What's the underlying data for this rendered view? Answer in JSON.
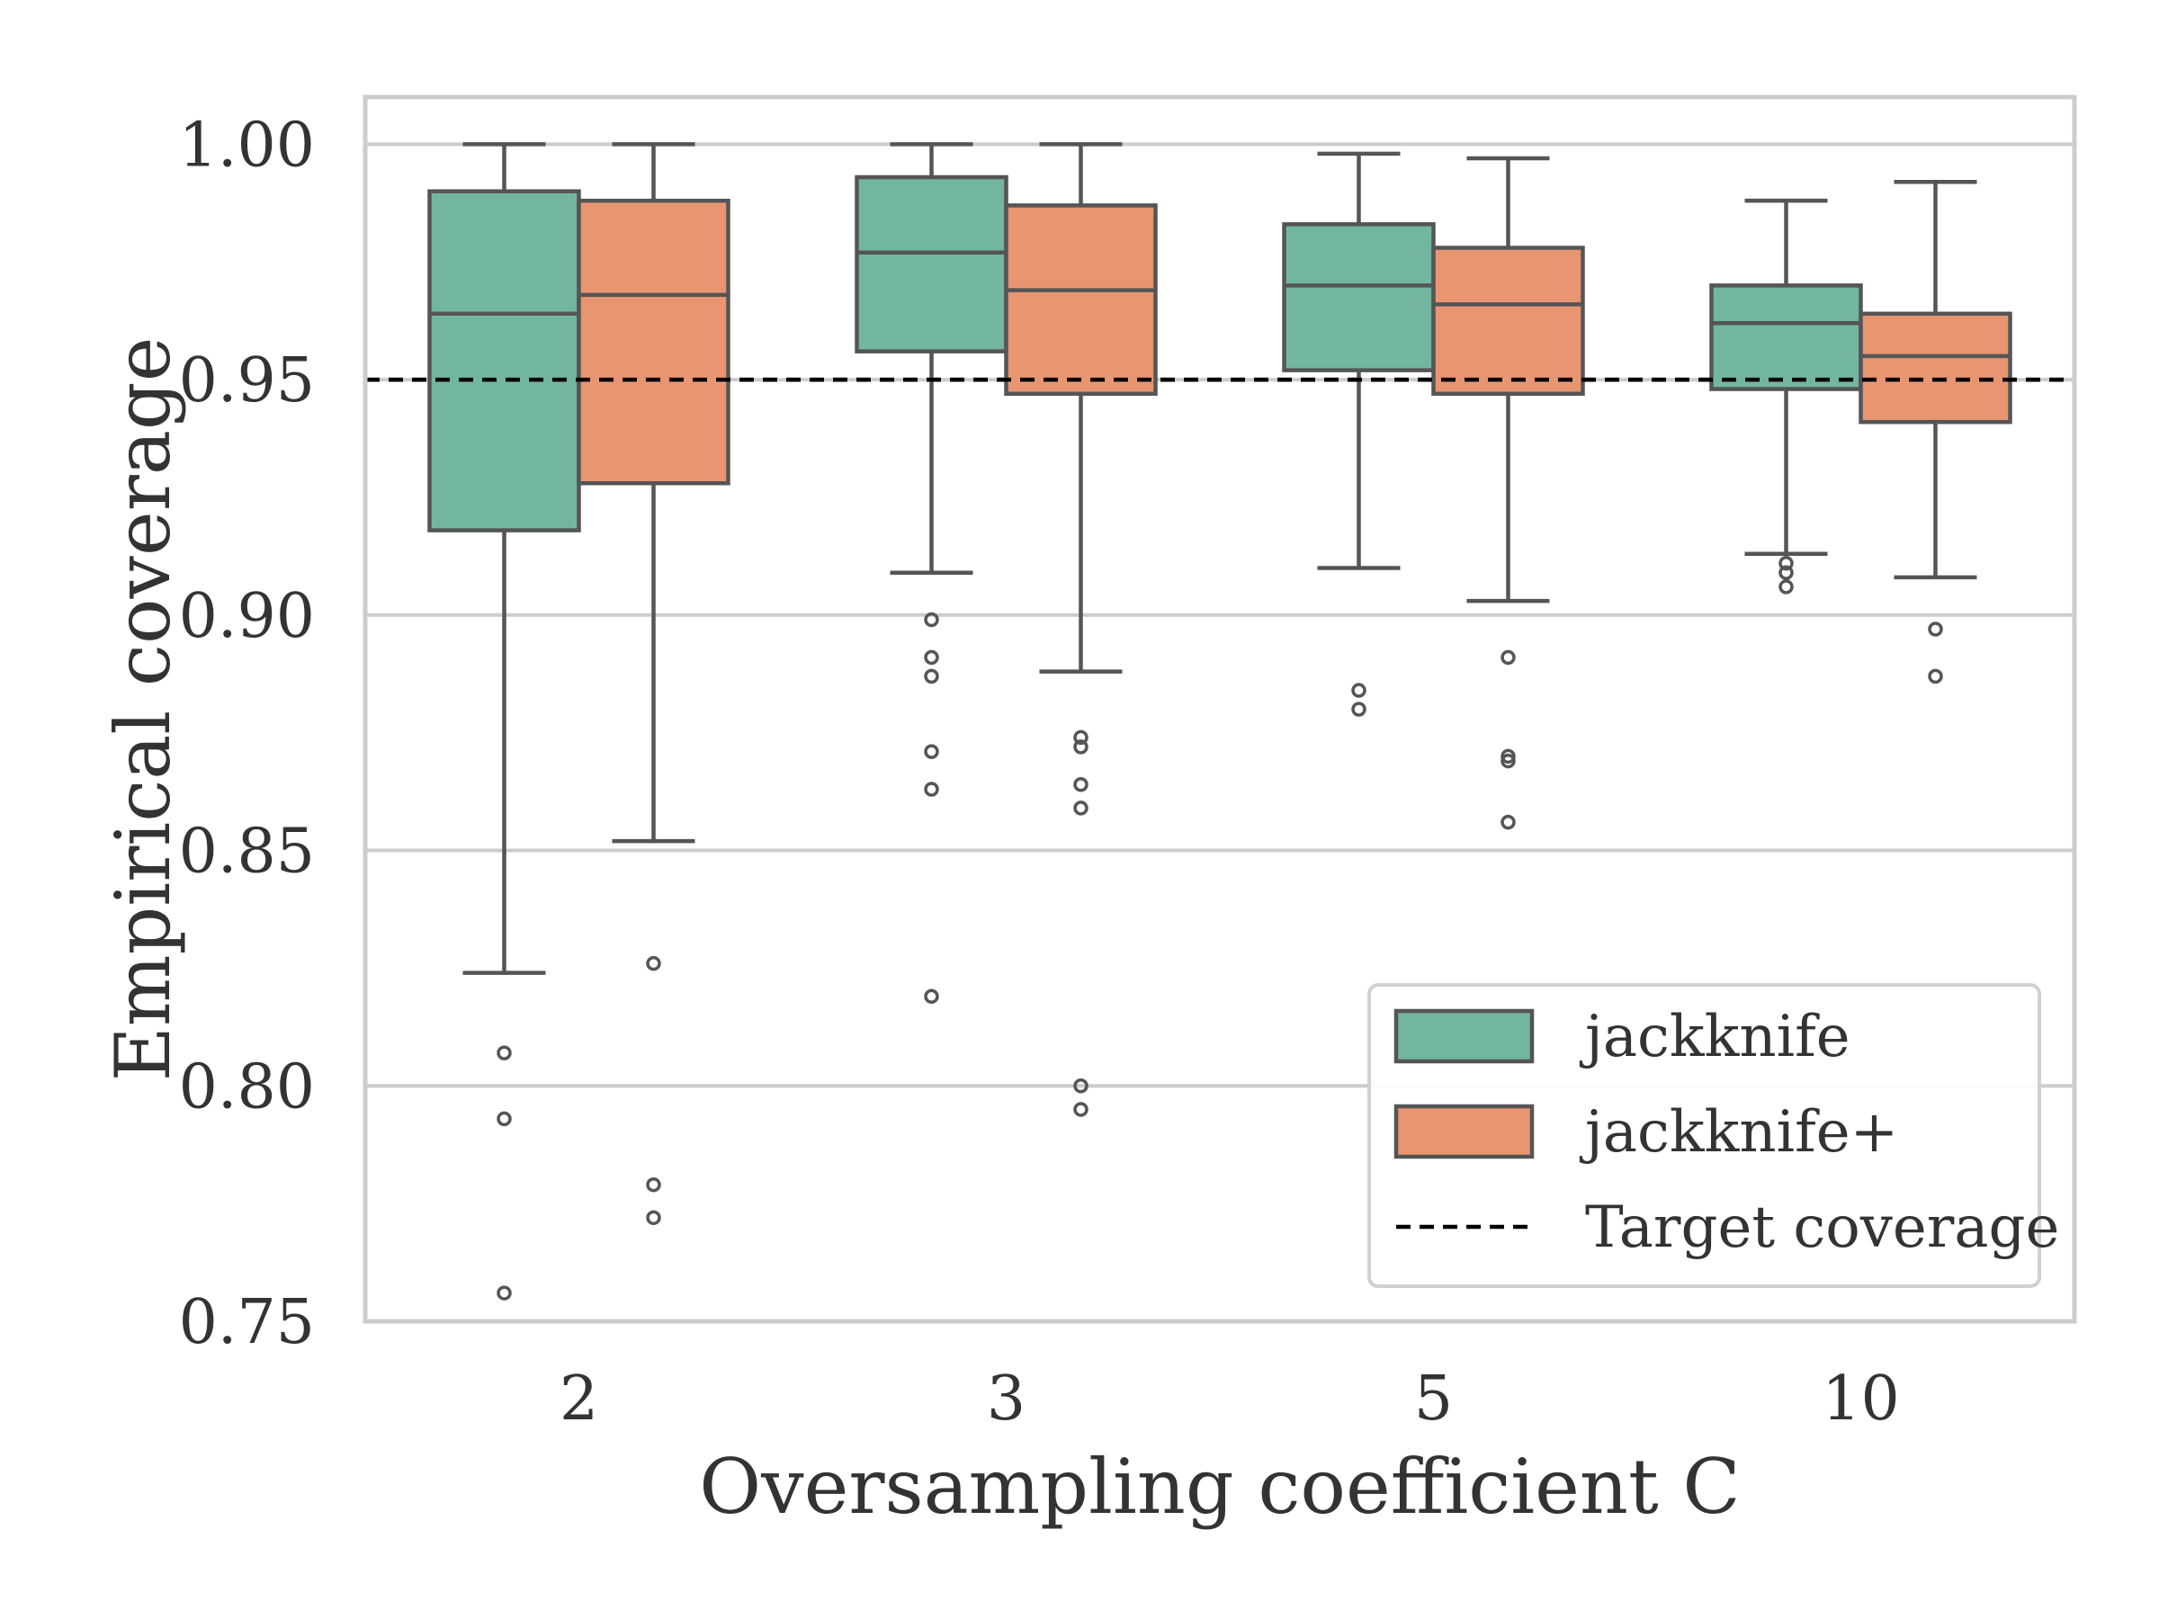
{
  "chart_data": {
    "type": "box",
    "xlabel": "Oversampling coefficient C",
    "ylabel": "Empirical coverage",
    "ylim": [
      0.75,
      1.01
    ],
    "yticks": [
      "0.75",
      "0.80",
      "0.85",
      "0.90",
      "0.95",
      "1.00"
    ],
    "categories": [
      "2",
      "3",
      "5",
      "10"
    ],
    "target_coverage": 0.95,
    "grid": "horizontal",
    "legend_position": "lower-right",
    "series": [
      {
        "name": "jackknife",
        "color": "#73B6A0",
        "boxes": [
          {
            "whisker_low": 0.824,
            "q1": 0.918,
            "median": 0.964,
            "q3": 0.99,
            "whisker_high": 1.0,
            "outliers": [
              0.807,
              0.793,
              0.756
            ]
          },
          {
            "whisker_low": 0.909,
            "q1": 0.956,
            "median": 0.977,
            "q3": 0.993,
            "whisker_high": 1.0,
            "outliers": [
              0.899,
              0.891,
              0.887,
              0.871,
              0.863,
              0.819
            ]
          },
          {
            "whisker_low": 0.91,
            "q1": 0.952,
            "median": 0.97,
            "q3": 0.983,
            "whisker_high": 0.998,
            "outliers": [
              0.884,
              0.88
            ]
          },
          {
            "whisker_low": 0.913,
            "q1": 0.948,
            "median": 0.962,
            "q3": 0.97,
            "whisker_high": 0.988,
            "outliers": [
              0.911,
              0.909,
              0.906
            ]
          }
        ]
      },
      {
        "name": "jackknife+",
        "color": "#E89572",
        "boxes": [
          {
            "whisker_low": 0.852,
            "q1": 0.928,
            "median": 0.968,
            "q3": 0.988,
            "whisker_high": 1.0,
            "outliers": [
              0.826,
              0.779,
              0.772
            ]
          },
          {
            "whisker_low": 0.888,
            "q1": 0.947,
            "median": 0.969,
            "q3": 0.987,
            "whisker_high": 1.0,
            "outliers": [
              0.874,
              0.872,
              0.864,
              0.859,
              0.8,
              0.795
            ]
          },
          {
            "whisker_low": 0.903,
            "q1": 0.947,
            "median": 0.966,
            "q3": 0.978,
            "whisker_high": 0.997,
            "outliers": [
              0.891,
              0.87,
              0.869,
              0.856
            ]
          },
          {
            "whisker_low": 0.908,
            "q1": 0.941,
            "median": 0.955,
            "q3": 0.964,
            "whisker_high": 0.992,
            "outliers": [
              0.897,
              0.887
            ]
          }
        ]
      }
    ],
    "legend": [
      "jackknife",
      "jackknife+",
      "Target coverage"
    ]
  }
}
